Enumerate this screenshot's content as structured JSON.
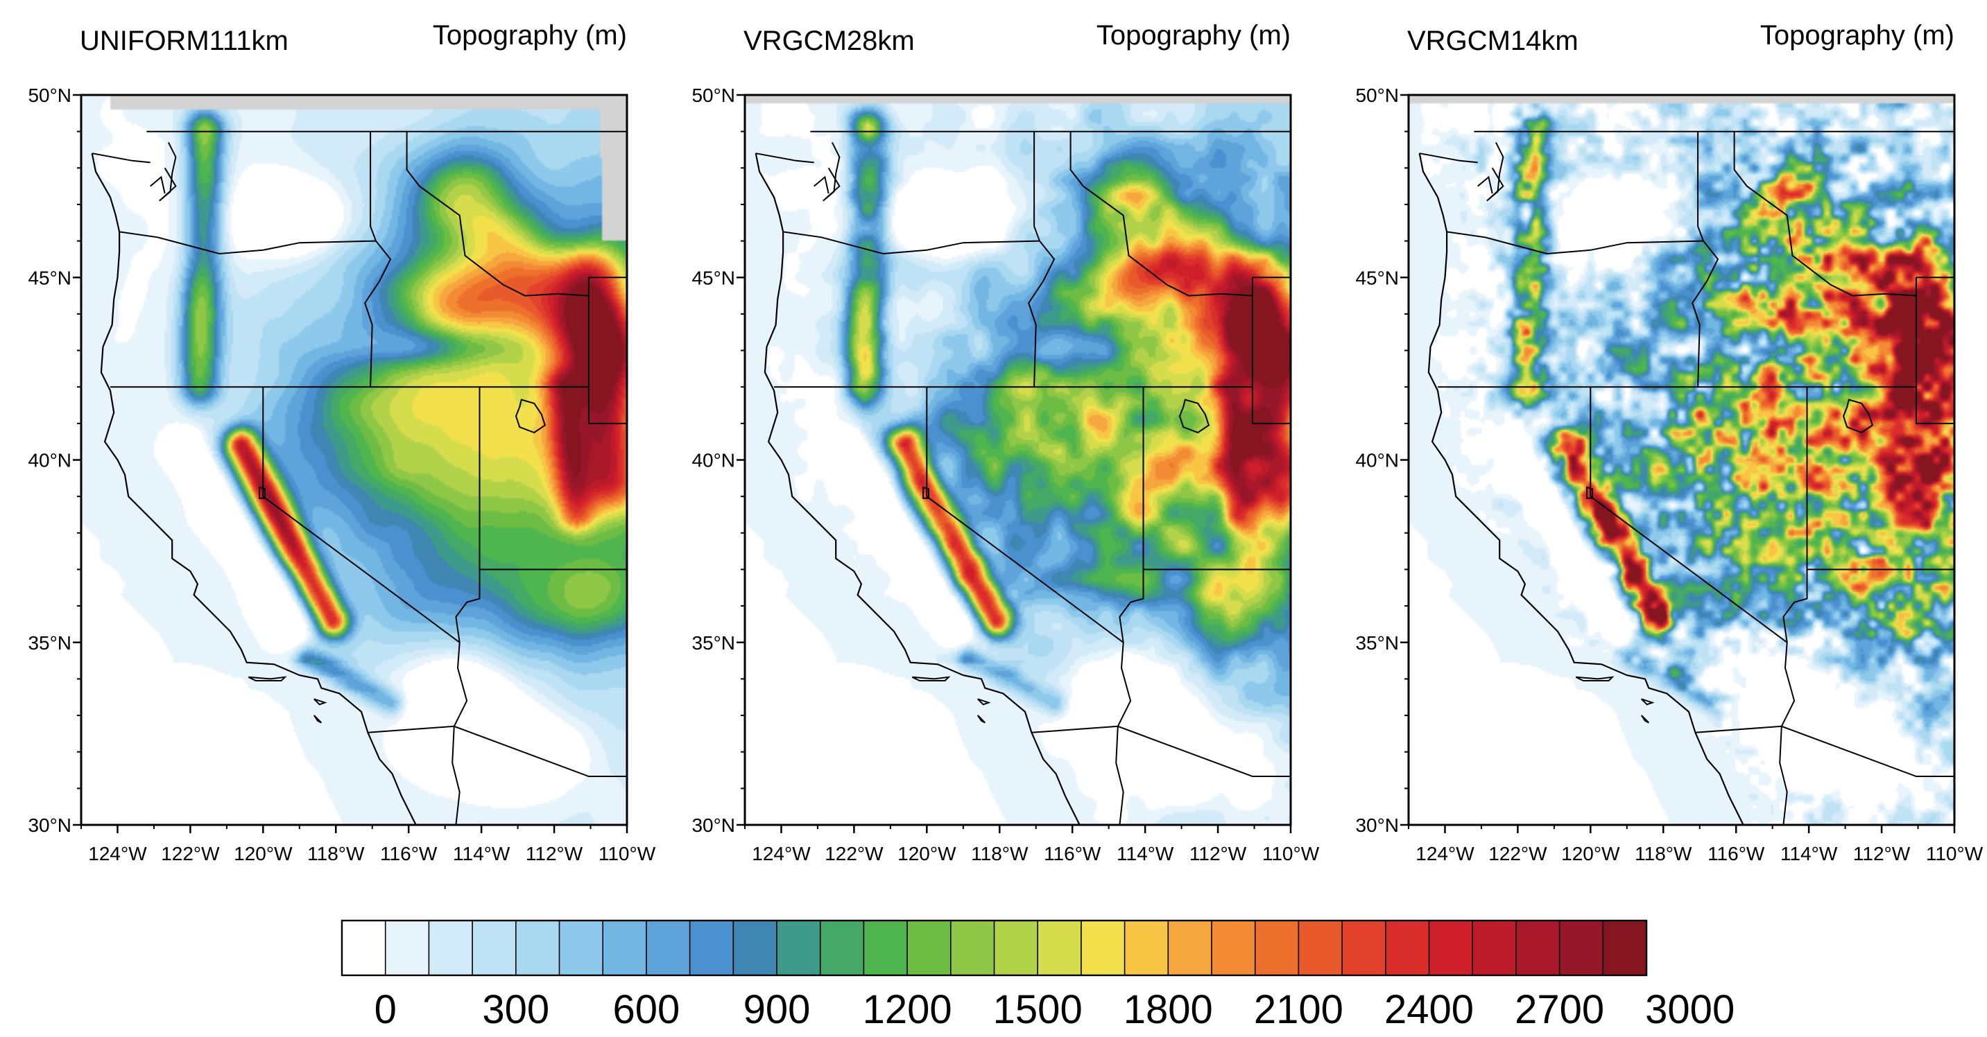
{
  "panels": [
    {
      "id": "uniform111",
      "left_title": "UNIFORM111km",
      "right_title": "Topography (m)",
      "smoothness": 2.6
    },
    {
      "id": "vrgcm28",
      "left_title": "VRGCM28km",
      "right_title": "Topography (m)",
      "smoothness": 1.4
    },
    {
      "id": "vrgcm14",
      "left_title": "VRGCM14km",
      "right_title": "Topography (m)",
      "smoothness": 0.8
    }
  ],
  "lat_ticks": [
    "50°N",
    "45°N",
    "40°N",
    "35°N",
    "30°N"
  ],
  "lon_ticks": [
    "124°W",
    "122°W",
    "120°W",
    "118°W",
    "116°W",
    "114°W",
    "112°W",
    "110°W"
  ],
  "extent": {
    "lon_min": -125,
    "lon_max": -110,
    "lat_min": 30,
    "lat_max": 50
  },
  "colorbar": {
    "labels": [
      "0",
      "300",
      "600",
      "900",
      "1200",
      "1500",
      "1800",
      "2100",
      "2400",
      "2700",
      "3000"
    ],
    "colors": [
      "#ffffff",
      "#e8f4fc",
      "#d3ebf8",
      "#bfe2f5",
      "#a9d8f1",
      "#8ec9ec",
      "#72b6e3",
      "#5ea3da",
      "#4b91d0",
      "#3f86b3",
      "#3e9a8a",
      "#45a866",
      "#4fb54f",
      "#6dbd45",
      "#8fc746",
      "#b2d249",
      "#d6dd4c",
      "#f2e04d",
      "#f8c545",
      "#f6a63e",
      "#f38b35",
      "#ee702d",
      "#e85a2b",
      "#e2412b",
      "#d92e2b",
      "#cf1f2a",
      "#be1b2a",
      "#a8172a",
      "#96162a",
      "#85151f"
    ]
  },
  "missing_color": "#d3d3d3"
}
